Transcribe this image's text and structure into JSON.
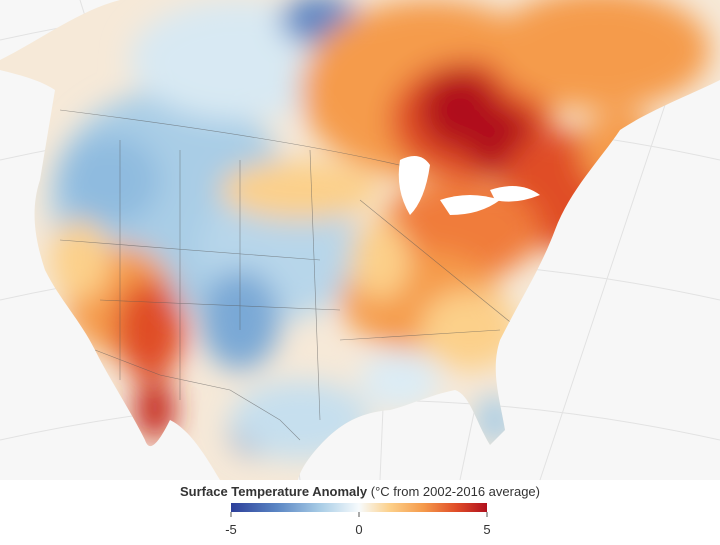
{
  "legend": {
    "title": "Surface Temperature Anomaly",
    "subtitle": "(°C from 2002-2016 average)",
    "range": [
      -5,
      5
    ],
    "ticks": [
      -5,
      0,
      5
    ]
  }
}
